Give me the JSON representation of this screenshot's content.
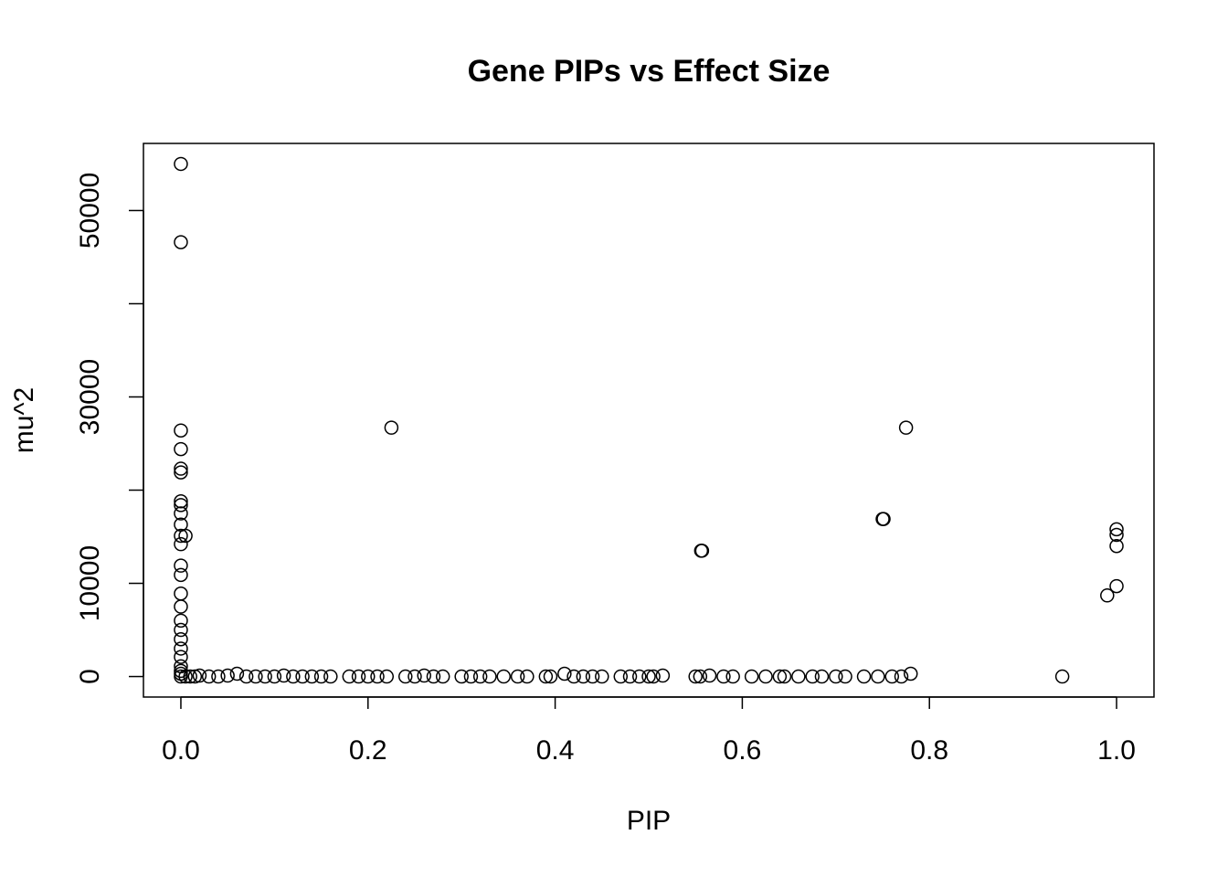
{
  "chart_data": {
    "type": "scatter",
    "title": "Gene PIPs vs Effect Size",
    "x_label": "PIP",
    "y_label": "mu^2",
    "color": "#000000",
    "xlim": [
      -0.04,
      1.04
    ],
    "ylim": [
      -2200,
      57200
    ],
    "xticks": [
      {
        "value": 0,
        "label": "0.0"
      },
      0.2,
      0.4,
      0.6,
      0.8,
      {
        "value": 1,
        "label": "1.0"
      }
    ],
    "yticks": [
      0,
      10000,
      {
        "value": 20000,
        "label": null
      },
      30000,
      {
        "value": 40000,
        "label": null
      },
      50000
    ],
    "x": [
      0,
      0,
      0,
      0,
      0,
      0,
      0,
      0,
      0,
      0,
      0,
      0,
      0,
      0,
      0,
      0,
      0,
      0,
      0,
      0,
      0,
      0,
      0,
      0,
      0,
      0.005,
      0.225,
      0.556,
      0.557,
      0.75,
      0.751,
      0.775,
      1,
      1,
      1,
      1,
      0.99,
      0.942,
      0.005,
      0.01,
      0.015,
      0.02,
      0.03,
      0.04,
      0.05,
      0.06,
      0.07,
      0.08,
      0.09,
      0.1,
      0.11,
      0.12,
      0.13,
      0.14,
      0.15,
      0.16,
      0.18,
      0.19,
      0.2,
      0.21,
      0.22,
      0.24,
      0.25,
      0.26,
      0.27,
      0.28,
      0.3,
      0.31,
      0.32,
      0.33,
      0.345,
      0.36,
      0.37,
      0.39,
      0.395,
      0.41,
      0.42,
      0.43,
      0.44,
      0.45,
      0.47,
      0.48,
      0.49,
      0.5,
      0.505,
      0.515,
      0.55,
      0.555,
      0.565,
      0.58,
      0.59,
      0.61,
      0.625,
      0.64,
      0.645,
      0.66,
      0.675,
      0.685,
      0.7,
      0.71,
      0.73,
      0.745,
      0.76,
      0.77,
      0.78
    ],
    "y": [
      55000,
      46600,
      26400,
      24400,
      22300,
      21900,
      18800,
      18400,
      17500,
      16300,
      15100,
      14200,
      11900,
      10900,
      8900,
      7500,
      6000,
      5000,
      4000,
      3000,
      2100,
      1100,
      600,
      300,
      0,
      15100,
      26700,
      13500,
      13500,
      16900,
      16900,
      26700,
      15800,
      15200,
      14000,
      9700,
      8700,
      0,
      0,
      0,
      0,
      100,
      0,
      0,
      100,
      300,
      0,
      0,
      0,
      0,
      100,
      0,
      0,
      0,
      0,
      0,
      0,
      0,
      0,
      0,
      0,
      0,
      0,
      100,
      0,
      0,
      0,
      0,
      0,
      0,
      0,
      0,
      0,
      0,
      0,
      300,
      0,
      0,
      0,
      0,
      0,
      0,
      0,
      0,
      0,
      100,
      0,
      0,
      100,
      0,
      0,
      0,
      0,
      0,
      0,
      0,
      0,
      0,
      0,
      0,
      0,
      0,
      0,
      0,
      300
    ]
  }
}
